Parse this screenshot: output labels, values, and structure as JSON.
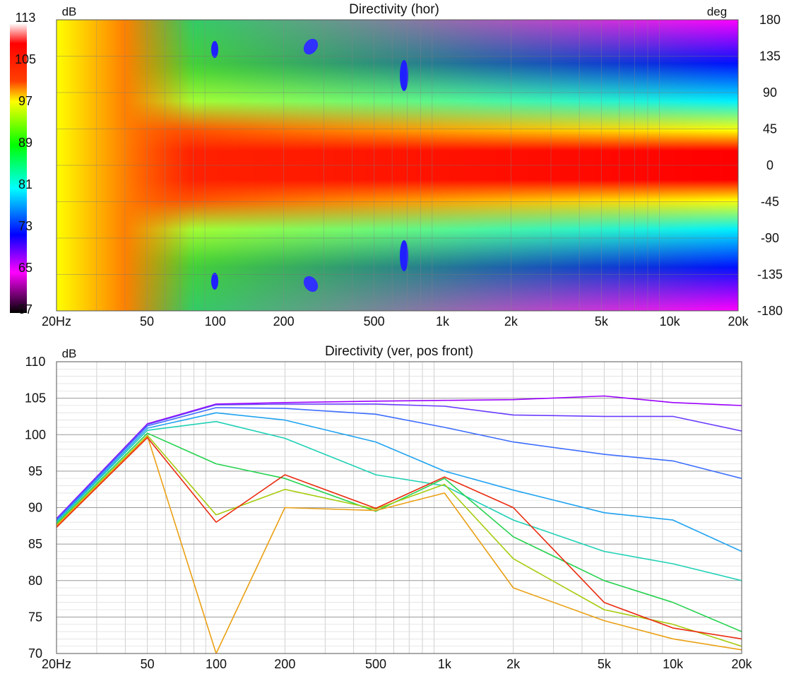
{
  "chart_data": [
    {
      "type": "heatmap",
      "title": "Directivity (hor)",
      "colorbar_unit": "dB",
      "colorbar_ticks": [
        113,
        105,
        97,
        89,
        81,
        73,
        65,
        57
      ],
      "colorbar_range": [
        57,
        113
      ],
      "y_unit": "deg",
      "y_ticks": [
        180,
        135,
        90,
        45,
        0,
        -45,
        -90,
        -135,
        -180
      ],
      "x_scale": "log",
      "x_ticks": [
        {
          "value": 20,
          "label": "20Hz"
        },
        {
          "value": 50,
          "label": "50"
        },
        {
          "value": 100,
          "label": "100"
        },
        {
          "value": 200,
          "label": "200"
        },
        {
          "value": 500,
          "label": "500"
        },
        {
          "value": 1000,
          "label": "1k"
        },
        {
          "value": 2000,
          "label": "2k"
        },
        {
          "value": 5000,
          "label": "5k"
        },
        {
          "value": 10000,
          "label": "10k"
        },
        {
          "value": 20000,
          "label": "20k"
        }
      ],
      "xlim": [
        20,
        20000
      ],
      "ylim": [
        -180,
        180
      ],
      "colormap": [
        "#000000",
        "#ff00ff",
        "#0000ff",
        "#00ffff",
        "#00ff00",
        "#ffff00",
        "#ff0000",
        "#ff0000"
      ],
      "grid": true
    },
    {
      "type": "line",
      "title": "Directivity (ver, pos front)",
      "ylabel": "dB",
      "y_ticks": [
        110,
        105,
        100,
        95,
        90,
        85,
        80,
        75,
        70
      ],
      "ylim": [
        70,
        110
      ],
      "x_scale": "log",
      "xlim": [
        20,
        20000
      ],
      "x_ticks": [
        {
          "value": 20,
          "label": "20Hz"
        },
        {
          "value": 50,
          "label": "50"
        },
        {
          "value": 100,
          "label": "100"
        },
        {
          "value": 200,
          "label": "200"
        },
        {
          "value": 500,
          "label": "500"
        },
        {
          "value": 1000,
          "label": "1k"
        },
        {
          "value": 2000,
          "label": "2k"
        },
        {
          "value": 5000,
          "label": "5k"
        },
        {
          "value": 10000,
          "label": "10k"
        },
        {
          "value": 20000,
          "label": "20k"
        }
      ],
      "grid": true,
      "series": [
        {
          "color": "#9b00ff",
          "x": [
            20,
            50,
            100,
            200,
            500,
            1000,
            2000,
            5000,
            10000,
            20000
          ],
          "values": [
            88.5,
            101.5,
            104.2,
            104.4,
            104.6,
            104.7,
            104.8,
            105.3,
            104.4,
            104.0
          ]
        },
        {
          "color": "#6a3cff",
          "x": [
            20,
            50,
            100,
            200,
            500,
            1000,
            2000,
            5000,
            10000,
            20000
          ],
          "values": [
            88.4,
            101.4,
            104.1,
            104.2,
            104.2,
            103.9,
            102.7,
            102.5,
            102.5,
            100.5
          ]
        },
        {
          "color": "#3d6dff",
          "x": [
            20,
            50,
            100,
            200,
            500,
            1000,
            2000,
            5000,
            10000,
            20000
          ],
          "values": [
            88.3,
            101.2,
            103.7,
            103.6,
            102.8,
            101.0,
            99.0,
            97.3,
            96.4,
            94.0
          ]
        },
        {
          "color": "#1fa3f0",
          "x": [
            20,
            50,
            100,
            200,
            500,
            1000,
            2000,
            5000,
            10000,
            20000
          ],
          "values": [
            88.1,
            100.9,
            103.0,
            102.0,
            99.0,
            95.0,
            92.4,
            89.3,
            88.3,
            84.0
          ]
        },
        {
          "color": "#1fd1b5",
          "x": [
            20,
            50,
            100,
            200,
            500,
            1000,
            2000,
            5000,
            10000,
            20000
          ],
          "values": [
            88.0,
            100.6,
            101.8,
            99.5,
            94.5,
            93.0,
            88.3,
            84.0,
            82.3,
            80.0
          ]
        },
        {
          "color": "#25d24e",
          "x": [
            20,
            50,
            100,
            200,
            500,
            1000,
            2000,
            5000,
            10000,
            20000
          ],
          "values": [
            87.8,
            100.2,
            96.0,
            94.0,
            89.5,
            94.0,
            86.0,
            80.0,
            77.0,
            73.0
          ]
        },
        {
          "color": "#a6cc10",
          "x": [
            20,
            50,
            100,
            200,
            500,
            1000,
            2000,
            5000,
            10000,
            20000
          ],
          "values": [
            87.6,
            99.9,
            89.0,
            92.5,
            89.8,
            93.2,
            83.0,
            76.0,
            74.0,
            71.0
          ]
        },
        {
          "color": "#eaa014",
          "x": [
            20,
            50,
            100,
            200,
            500,
            1000,
            2000,
            5000,
            10000,
            20000
          ],
          "values": [
            87.5,
            99.8,
            70.0,
            90.0,
            89.6,
            92.0,
            79.0,
            74.5,
            72.0,
            70.5
          ]
        },
        {
          "color": "#ea2a0e",
          "x": [
            20,
            50,
            100,
            200,
            500,
            1000,
            2000,
            5000,
            10000,
            20000
          ],
          "values": [
            87.3,
            99.6,
            88.0,
            94.5,
            89.9,
            94.2,
            90.0,
            77.0,
            73.5,
            72.0
          ]
        }
      ]
    }
  ]
}
